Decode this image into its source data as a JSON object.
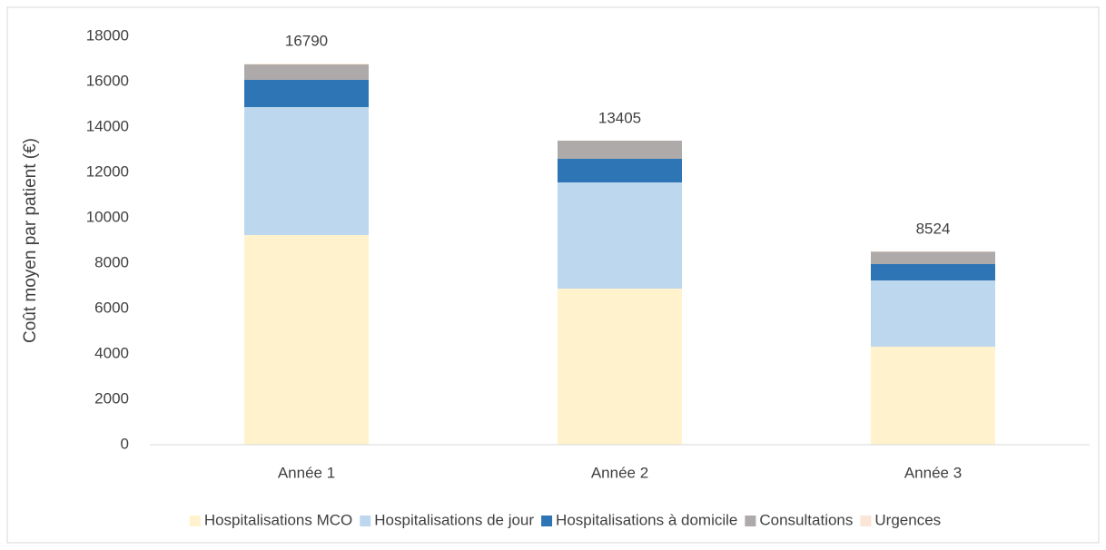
{
  "chart_data": {
    "type": "stacked_bar",
    "y_label": "Coût moyen par patient (€)",
    "categories": [
      "Année 1",
      "Année 2",
      "Année 3"
    ],
    "series": [
      {
        "name": "Hospitalisations MCO",
        "color": "#fff2cc",
        "values": [
          9240,
          6880,
          4320
        ]
      },
      {
        "name": "Hospitalisations de jour",
        "color": "#bdd7ee",
        "values": [
          5640,
          4680,
          2920
        ]
      },
      {
        "name": "Hospitalisations à domicile",
        "color": "#2e75b6",
        "values": [
          1200,
          1040,
          720
        ]
      },
      {
        "name": "Consultations",
        "color": "#aeaaaa",
        "values": [
          680,
          800,
          550
        ]
      },
      {
        "name": "Urgences",
        "color": "#fbe5d6",
        "values": [
          30,
          5,
          14
        ]
      }
    ],
    "totals": [
      16790,
      13405,
      8524
    ],
    "ylim": [
      0,
      18000
    ],
    "yticks": [
      0,
      2000,
      4000,
      6000,
      8000,
      10000,
      12000,
      14000,
      16000,
      18000
    ],
    "grid": false,
    "legend": "bottom"
  }
}
